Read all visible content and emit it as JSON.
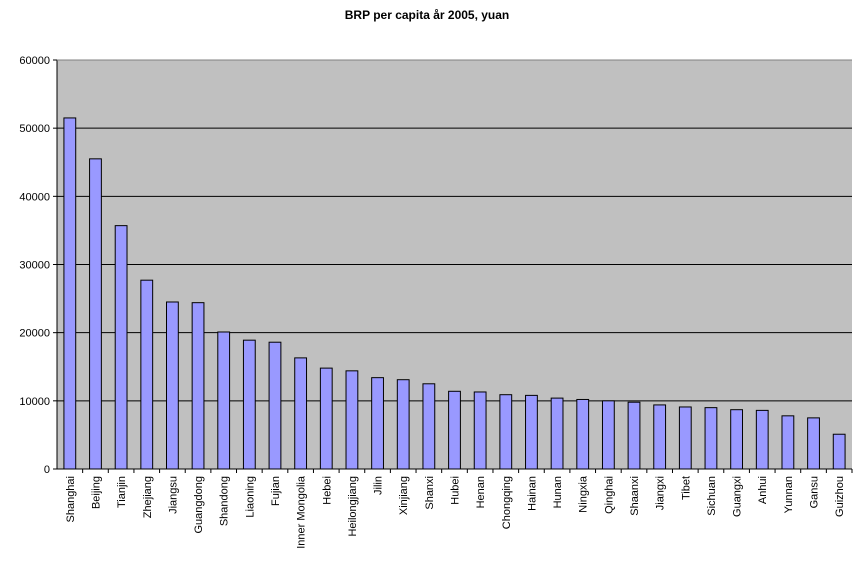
{
  "chart_data": {
    "type": "bar",
    "title": "BRP per capita år 2005, yuan",
    "xlabel": "",
    "ylabel": "",
    "ylim": [
      0,
      60000
    ],
    "yticks": [
      0,
      10000,
      20000,
      30000,
      40000,
      50000,
      60000
    ],
    "grid": true,
    "legend": "none",
    "bar_color": "#9999ff",
    "plot_background": "#c0c0c0",
    "categories": [
      "Shanghai",
      "Beijing",
      "Tianjin",
      "Zhejiang",
      "Jiangsu",
      "Guangdong",
      "Shandong",
      "Liaoning",
      "Fujian",
      "Inner Mongolia",
      "Hebei",
      "Heilongjiang",
      "Jilin",
      "Xinjiang",
      "Shanxi",
      "Hubei",
      "Henan",
      "Chongqing",
      "Hainan",
      "Hunan",
      "Ningxia",
      "Qinghai",
      "Shaanxi",
      "Jiangxi",
      "Tibet",
      "Sichuan",
      "Guangxi",
      "Anhui",
      "Yunnan",
      "Gansu",
      "Guizhou"
    ],
    "values": [
      51500,
      45500,
      35700,
      27700,
      24500,
      24400,
      20100,
      18900,
      18600,
      16300,
      14800,
      14400,
      13400,
      13100,
      12500,
      11400,
      11300,
      10900,
      10800,
      10400,
      10200,
      10000,
      9800,
      9400,
      9100,
      9000,
      8700,
      8600,
      7800,
      7500,
      5100
    ]
  }
}
